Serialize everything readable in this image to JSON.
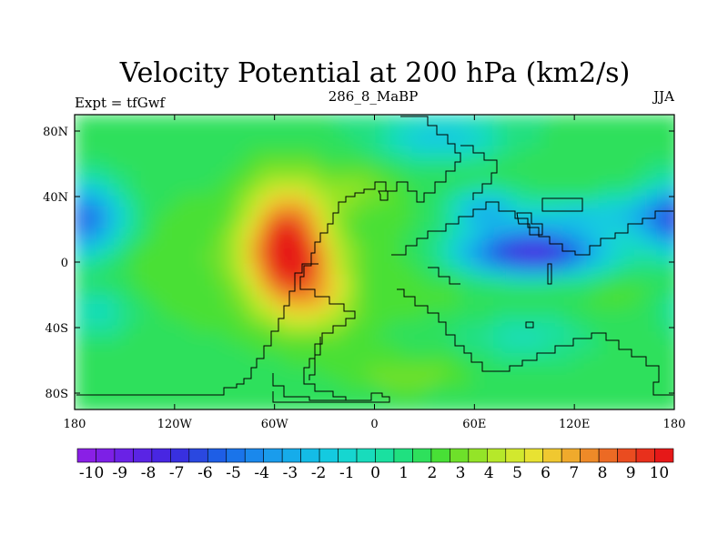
{
  "chart_data": {
    "type": "heatmap",
    "title": "Velocity Potential at 200 hPa (km2/s)",
    "left_label": "Expt = tfGwf",
    "center_label": "286_8_MaBP",
    "right_label": "JJA",
    "x_ticks": [
      "180",
      "120W",
      "60W",
      "0",
      "60E",
      "120E",
      "180"
    ],
    "x_tick_values": [
      -180,
      -120,
      -60,
      0,
      60,
      120,
      180
    ],
    "y_ticks": [
      "80N",
      "40N",
      "0",
      "40S",
      "80S"
    ],
    "y_tick_values": [
      80,
      40,
      0,
      -40,
      -80
    ],
    "xlim": [
      -180,
      180
    ],
    "ylim": [
      -90,
      90
    ],
    "colorbar": {
      "labels": [
        "-10",
        "-9",
        "-8",
        "-7",
        "-6",
        "-5",
        "-4",
        "-3",
        "-2",
        "-1",
        "0",
        "1",
        "2",
        "3",
        "4",
        "5",
        "6",
        "7",
        "8",
        "9",
        "10"
      ],
      "levels": [
        -10,
        -9,
        -8,
        -7,
        -6,
        -5,
        -4,
        -3,
        -2,
        -1,
        0,
        1,
        2,
        3,
        4,
        5,
        6,
        7,
        8,
        9,
        10
      ],
      "min": -10.5,
      "max": 10.5,
      "boxes": 32
    },
    "field_centers": [
      {
        "name": "positive-center",
        "lon": -40,
        "lat": -5,
        "value": 10.5
      },
      {
        "name": "negative-center-east",
        "lon": 95,
        "lat": 5,
        "value": -9.5
      },
      {
        "name": "negative-center-west",
        "lon": -175,
        "lat": 25,
        "value": -7
      }
    ]
  }
}
